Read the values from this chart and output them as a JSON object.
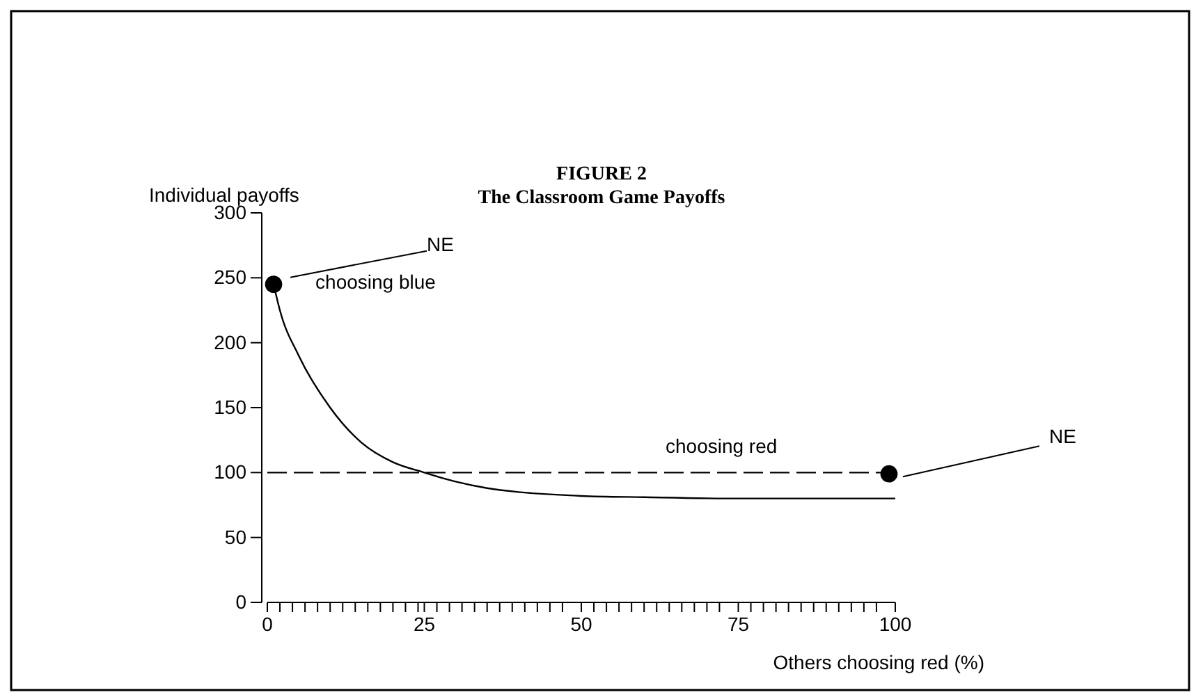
{
  "chart_data": {
    "type": "line",
    "title": "FIGURE 2",
    "subtitle": "The Classroom Game Payoffs",
    "xlabel": "Others choosing red (%)",
    "ylabel": "Individual payoffs",
    "xlim": [
      0,
      100
    ],
    "ylim": [
      0,
      300
    ],
    "xticks": [
      0,
      {
        "value": 2,
        "label": null
      },
      {
        "value": 4,
        "label": null
      },
      {
        "value": 6,
        "label": null
      },
      {
        "value": 8,
        "label": null
      },
      {
        "value": 10,
        "label": null
      },
      {
        "value": 12,
        "label": null
      },
      {
        "value": 14,
        "label": null
      },
      {
        "value": 16,
        "label": null
      },
      {
        "value": 18,
        "label": null
      },
      {
        "value": 20,
        "label": null
      },
      {
        "value": 22,
        "label": null
      },
      {
        "value": 24,
        "label": null
      },
      25,
      {
        "value": 27,
        "label": null
      },
      {
        "value": 29,
        "label": null
      },
      {
        "value": 31,
        "label": null
      },
      {
        "value": 33,
        "label": null
      },
      {
        "value": 35,
        "label": null
      },
      {
        "value": 37,
        "label": null
      },
      {
        "value": 39,
        "label": null
      },
      {
        "value": 41,
        "label": null
      },
      {
        "value": 43,
        "label": null
      },
      {
        "value": 45,
        "label": null
      },
      {
        "value": 47,
        "label": null
      },
      50,
      {
        "value": 52,
        "label": null
      },
      {
        "value": 54,
        "label": null
      },
      {
        "value": 56,
        "label": null
      },
      {
        "value": 58,
        "label": null
      },
      {
        "value": 60,
        "label": null
      },
      {
        "value": 62,
        "label": null
      },
      {
        "value": 64,
        "label": null
      },
      {
        "value": 66,
        "label": null
      },
      {
        "value": 68,
        "label": null
      },
      {
        "value": 70,
        "label": null
      },
      {
        "value": 72,
        "label": null
      },
      75,
      {
        "value": 77,
        "label": null
      },
      {
        "value": 79,
        "label": null
      },
      {
        "value": 81,
        "label": null
      },
      {
        "value": 83,
        "label": null
      },
      {
        "value": 85,
        "label": null
      },
      {
        "value": 87,
        "label": null
      },
      {
        "value": 89,
        "label": null
      },
      {
        "value": 91,
        "label": null
      },
      {
        "value": 93,
        "label": null
      },
      {
        "value": 95,
        "label": null
      },
      {
        "value": 97,
        "label": null
      },
      100
    ],
    "yticks": [
      0,
      50,
      100,
      150,
      200,
      250,
      300
    ],
    "grid": false,
    "series": [
      {
        "name": "choosing blue",
        "color": "#000000",
        "line_style": "solid",
        "marker": "none",
        "x": [
          1,
          2,
          5,
          10,
          15,
          20,
          25,
          30,
          35,
          40,
          50,
          60,
          75,
          100
        ],
        "values": [
          245,
          225,
          190,
          150,
          123,
          108,
          100,
          93,
          88,
          85,
          82,
          81,
          80,
          80
        ]
      },
      {
        "name": "choosing red",
        "color": "#000000",
        "line_style": "dashed",
        "marker": "none",
        "x": [
          0,
          100
        ],
        "values": [
          100,
          100
        ]
      },
      {
        "type": "scatter",
        "color": "#000000",
        "marker": "circle",
        "x": [
          1,
          99
        ],
        "values": [
          245,
          99
        ]
      }
    ],
    "annotations": [
      "NE",
      "NE"
    ]
  }
}
